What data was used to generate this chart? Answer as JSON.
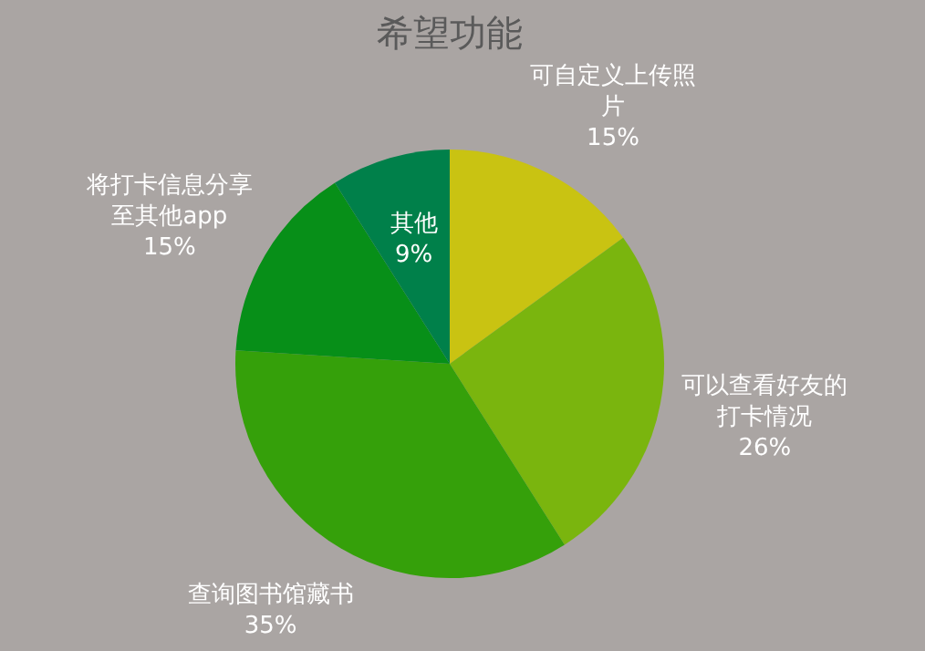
{
  "chart_data": {
    "type": "pie",
    "title": "希望功能",
    "categories": [
      "可自定义上传照片",
      "可以查看好友的打卡情况",
      "查询图书馆藏书",
      "将打卡信息分享至其他app",
      "其他"
    ],
    "values": [
      15,
      26,
      35,
      15,
      9
    ],
    "colors": [
      "#c9c312",
      "#7ab50e",
      "#35a00a",
      "#078f18",
      "#00804a"
    ],
    "value_labels": [
      "15%",
      "26%",
      "35%",
      "15%",
      "9%"
    ],
    "legend": false
  }
}
